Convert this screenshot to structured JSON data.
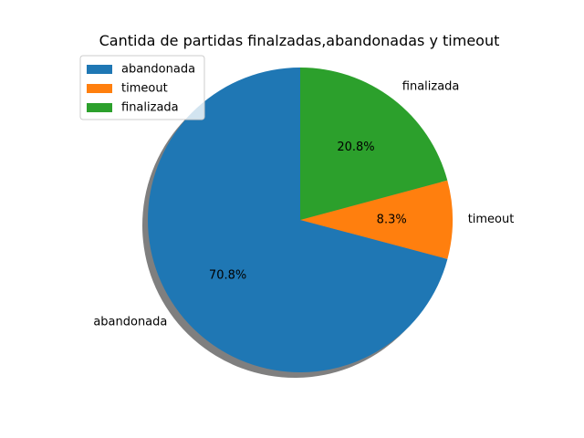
{
  "chart_data": {
    "type": "pie",
    "title": "Cantida de partidas finalzadas,abandonadas y timeout",
    "categories": [
      "abandonada",
      "timeout",
      "finalizada"
    ],
    "values": [
      70.8,
      8.3,
      20.8
    ],
    "percent_labels": [
      "70.8%",
      "8.3%",
      "20.8%"
    ],
    "colors": [
      "#1f77b4",
      "#ff7f0e",
      "#2ca02c"
    ],
    "start_angle_deg": 90,
    "direction": "counterclockwise",
    "shadow": true,
    "legend": {
      "position": "upper-left",
      "entries": [
        "abandonada",
        "timeout",
        "finalizada"
      ]
    }
  }
}
